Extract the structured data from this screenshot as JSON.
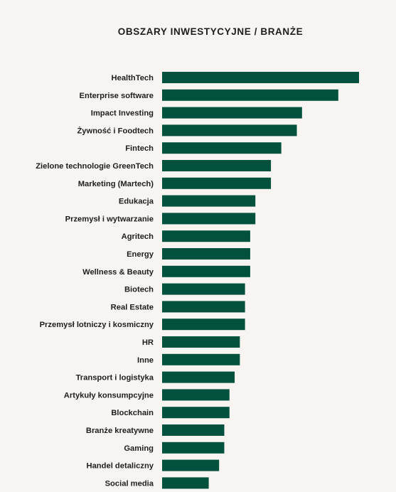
{
  "chart_data": {
    "type": "bar",
    "orientation": "horizontal",
    "title": "OBSZARY INWESTYCYJNE / BRANŻE",
    "xlabel": "",
    "ylabel": "",
    "categories": [
      "HealthTech",
      "Enterprise software",
      "Impact Investing",
      "Żywność i Foodtech",
      "Fintech",
      "Zielone technologie GreenTech",
      "Marketing (Martech)",
      "Edukacja",
      "Przemysł i wytwarzanie",
      "Agritech",
      "Energy",
      "Wellness & Beauty",
      "Biotech",
      "Real Estate",
      "Przemysł lotniczy i kosmiczny",
      "HR",
      "Inne",
      "Transport i logistyka",
      "Artykuły konsumpcyjne",
      "Blockchain",
      "Branże kreatywne",
      "Gaming",
      "Handel detaliczny",
      "Social media"
    ],
    "values": [
      38,
      34,
      27,
      26,
      23,
      21,
      21,
      18,
      18,
      17,
      17,
      17,
      16,
      16,
      16,
      15,
      15,
      14,
      13,
      13,
      12,
      12,
      11,
      9
    ],
    "xlim": [
      0,
      38
    ],
    "grid": false,
    "legend": "none",
    "bar_color": "#02513c"
  }
}
